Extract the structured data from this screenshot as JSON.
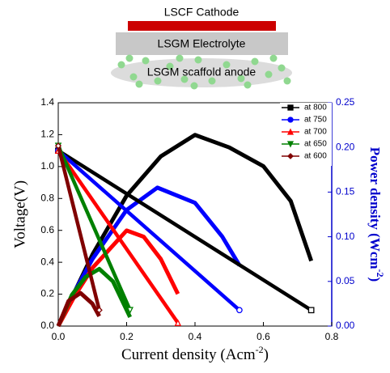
{
  "diagram": {
    "layers": [
      "LSCF Cathode",
      "LSGM Electrolyte",
      "LSGM scaffold anode"
    ]
  },
  "chart_data": {
    "type": "line",
    "xlabel": [
      "Current density (Acm",
      "-2",
      ")"
    ],
    "ylabel": "Voltage(V)",
    "y2label": [
      "Power density (Wcm",
      "-2",
      ")"
    ],
    "xlim": [
      0,
      0.8
    ],
    "xticks": [
      {
        "value": 0,
        "label": "0.0"
      },
      0.2,
      0.4,
      0.6,
      0.8
    ],
    "ylim": [
      0,
      1.4
    ],
    "yticks": [
      {
        "value": 0,
        "label": "0.0"
      },
      0.2,
      0.4,
      0.6,
      0.8,
      {
        "value": 1,
        "label": "1.0"
      },
      1.2,
      1.4
    ],
    "y2lim": [
      0,
      0.25
    ],
    "y2ticks": [
      {
        "value": 0,
        "label": "0.00"
      },
      {
        "value": 0.05,
        "label": "0.05"
      },
      {
        "value": 0.1,
        "label": "0.10"
      },
      {
        "value": 0.15,
        "label": "0.15"
      },
      {
        "value": 0.2,
        "label": "0.20"
      },
      {
        "value": 0.25,
        "label": "0.25"
      }
    ],
    "y2color": "#0000cc",
    "legend": "upper right",
    "series": [
      {
        "name": "at 800",
        "color": "#000000",
        "marker": "square",
        "x": [
          0,
          0.74
        ],
        "values": [
          1.1,
          0.1
        ]
      },
      {
        "name": "at 750",
        "color": "#0000ff",
        "marker": "circle",
        "x": [
          0,
          0.53
        ],
        "values": [
          1.1,
          0.1
        ]
      },
      {
        "name": "at 700",
        "color": "#ff0000",
        "marker": "triangle-up",
        "x": [
          0,
          0.35
        ],
        "values": [
          1.1,
          0.02
        ]
      },
      {
        "name": "at 650",
        "color": "#008000",
        "marker": "triangle-down",
        "x": [
          0,
          0.21
        ],
        "values": [
          1.13,
          0.1
        ]
      },
      {
        "name": "at 600",
        "color": "#800000",
        "marker": "diamond",
        "x": [
          0,
          0.12
        ],
        "values": [
          1.13,
          0.1
        ]
      }
    ],
    "power_series": [
      {
        "color": "#000000",
        "axis": "y2",
        "x": [
          0,
          0.05,
          0.1,
          0.2,
          0.3,
          0.4,
          0.5,
          0.6,
          0.68,
          0.74
        ],
        "values": [
          0,
          0.04,
          0.08,
          0.146,
          0.19,
          0.214,
          0.2,
          0.179,
          0.14,
          0.073
        ]
      },
      {
        "color": "#0000ff",
        "axis": "y2",
        "x": [
          0,
          0.05,
          0.1,
          0.2,
          0.29,
          0.4,
          0.48,
          0.53
        ],
        "values": [
          0,
          0.04,
          0.075,
          0.13,
          0.155,
          0.138,
          0.1,
          0.068
        ]
      },
      {
        "color": "#ff0000",
        "axis": "y2",
        "x": [
          0,
          0.05,
          0.1,
          0.2,
          0.25,
          0.3,
          0.35
        ],
        "values": [
          0,
          0.035,
          0.065,
          0.107,
          0.1,
          0.075,
          0.036
        ]
      },
      {
        "color": "#008000",
        "axis": "y2",
        "x": [
          0,
          0.04,
          0.08,
          0.12,
          0.16,
          0.21
        ],
        "values": [
          0,
          0.035,
          0.055,
          0.064,
          0.05,
          0.01
        ]
      },
      {
        "color": "#800000",
        "axis": "y2",
        "x": [
          0,
          0.03,
          0.065,
          0.1,
          0.12
        ],
        "values": [
          0,
          0.028,
          0.037,
          0.025,
          0.011
        ]
      }
    ]
  }
}
